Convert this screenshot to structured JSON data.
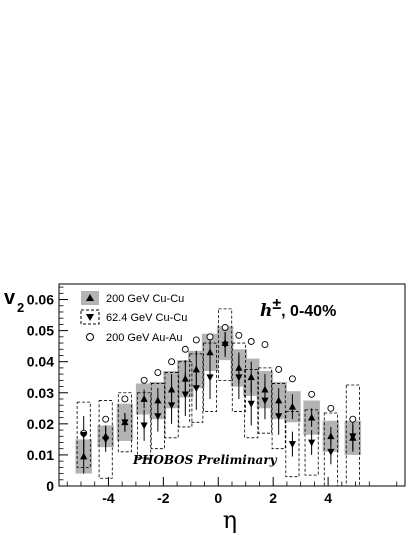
{
  "chart_data": {
    "type": "scatter",
    "xlabel": "η",
    "ylabel": "v",
    "ylabel_sub": "2",
    "xlim": [
      -5.8,
      6.8
    ],
    "ylim": [
      0,
      0.065
    ],
    "xticks": [
      -4,
      -2,
      0,
      2,
      4
    ],
    "xtick_labels": [
      "-4",
      "-2",
      "0",
      "2",
      "4"
    ],
    "yticks": [
      0,
      0.01,
      0.02,
      0.03,
      0.04,
      0.05,
      0.06
    ],
    "ytick_labels": [
      "0",
      "0.01",
      "0.02",
      "0.03",
      "0.04",
      "0.05",
      "0.06"
    ],
    "annotation": {
      "particle": "h",
      "charge": "±",
      "centrality": ", 0-40%"
    },
    "watermark": "PHOBOS Preliminary",
    "legend": {
      "placement": "top-left",
      "entries": [
        {
          "label": "200 GeV Cu-Cu",
          "marker": "triangle-up",
          "band": "gray-filled"
        },
        {
          "label": "62.4 GeV Cu-Cu",
          "marker": "triangle-down",
          "band": "dashed-box"
        },
        {
          "label": "200 GeV Au-Au",
          "marker": "open-circle",
          "band": "none"
        }
      ]
    },
    "series": [
      {
        "name": "200 GeV Cu-Cu",
        "marker": "triangle-up",
        "color": "#000000",
        "band_color": "#b3b3b3",
        "points": [
          {
            "x": -4.9,
            "y": 0.0095,
            "err": 0.0055,
            "sys": 0.0055
          },
          {
            "x": -4.1,
            "y": 0.016,
            "err": 0.0035,
            "sys": 0.0035
          },
          {
            "x": -3.4,
            "y": 0.0205,
            "err": 0.003,
            "sys": 0.006
          },
          {
            "x": -2.7,
            "y": 0.028,
            "err": 0.003,
            "sys": 0.005
          },
          {
            "x": -2.2,
            "y": 0.0275,
            "err": 0.004,
            "sys": 0.006
          },
          {
            "x": -1.7,
            "y": 0.031,
            "err": 0.005,
            "sys": 0.006
          },
          {
            "x": -1.2,
            "y": 0.0345,
            "err": 0.006,
            "sys": 0.006
          },
          {
            "x": -0.8,
            "y": 0.0375,
            "err": 0.006,
            "sys": 0.006
          },
          {
            "x": -0.3,
            "y": 0.043,
            "err": 0.006,
            "sys": 0.006
          },
          {
            "x": 0.25,
            "y": 0.046,
            "err": 0.0035,
            "sys": 0.0055
          },
          {
            "x": 0.75,
            "y": 0.038,
            "err": 0.005,
            "sys": 0.006
          },
          {
            "x": 1.2,
            "y": 0.035,
            "err": 0.005,
            "sys": 0.006
          },
          {
            "x": 1.7,
            "y": 0.031,
            "err": 0.005,
            "sys": 0.006
          },
          {
            "x": 2.2,
            "y": 0.0275,
            "err": 0.004,
            "sys": 0.006
          },
          {
            "x": 2.7,
            "y": 0.0255,
            "err": 0.004,
            "sys": 0.005
          },
          {
            "x": 3.4,
            "y": 0.022,
            "err": 0.003,
            "sys": 0.0055
          },
          {
            "x": 4.1,
            "y": 0.016,
            "err": 0.003,
            "sys": 0.005
          },
          {
            "x": 4.9,
            "y": 0.0155,
            "err": 0.004,
            "sys": 0.0055
          }
        ]
      },
      {
        "name": "62.4 GeV Cu-Cu",
        "marker": "triangle-down",
        "color": "#000000",
        "points": [
          {
            "x": -4.9,
            "y": 0.0165,
            "err": 0.006,
            "sys": 0.0105
          },
          {
            "x": -4.1,
            "y": 0.015,
            "err": 0.004,
            "sys": 0.0125
          },
          {
            "x": -3.4,
            "y": 0.0205,
            "err": 0.003,
            "sys": 0.0095
          },
          {
            "x": -2.7,
            "y": 0.0195,
            "err": 0.005,
            "sys": 0.0105
          },
          {
            "x": -2.2,
            "y": 0.0225,
            "err": 0.005,
            "sys": 0.0105
          },
          {
            "x": -1.7,
            "y": 0.026,
            "err": 0.006,
            "sys": 0.0105
          },
          {
            "x": -1.2,
            "y": 0.0295,
            "err": 0.007,
            "sys": 0.0105
          },
          {
            "x": -0.8,
            "y": 0.0315,
            "err": 0.007,
            "sys": 0.011
          },
          {
            "x": -0.3,
            "y": 0.035,
            "err": 0.007,
            "sys": 0.011
          },
          {
            "x": 0.25,
            "y": 0.0455,
            "err": 0.004,
            "sys": 0.0115
          },
          {
            "x": 0.75,
            "y": 0.035,
            "err": 0.007,
            "sys": 0.011
          },
          {
            "x": 1.2,
            "y": 0.0265,
            "err": 0.007,
            "sys": 0.011
          },
          {
            "x": 1.7,
            "y": 0.0275,
            "err": 0.006,
            "sys": 0.0105
          },
          {
            "x": 2.2,
            "y": 0.0225,
            "err": 0.006,
            "sys": 0.0105
          },
          {
            "x": 2.7,
            "y": 0.0135,
            "err": 0.004,
            "sys": 0.0105
          },
          {
            "x": 3.4,
            "y": 0.014,
            "err": 0.004,
            "sys": 0.0105
          },
          {
            "x": 4.1,
            "y": 0.011,
            "err": 0.004,
            "sys": 0.0125
          },
          {
            "x": 4.9,
            "y": 0.016,
            "err": 0.005,
            "sys": 0.0165
          }
        ]
      },
      {
        "name": "200 GeV Au-Au",
        "marker": "open-circle",
        "color": "#000000",
        "points": [
          {
            "x": -4.9,
            "y": 0.017
          },
          {
            "x": -4.1,
            "y": 0.0215
          },
          {
            "x": -3.4,
            "y": 0.028
          },
          {
            "x": -2.7,
            "y": 0.034
          },
          {
            "x": -2.2,
            "y": 0.0365
          },
          {
            "x": -1.7,
            "y": 0.04
          },
          {
            "x": -1.2,
            "y": 0.044
          },
          {
            "x": -0.8,
            "y": 0.047
          },
          {
            "x": -0.3,
            "y": 0.048
          },
          {
            "x": 0.25,
            "y": 0.051
          },
          {
            "x": 0.75,
            "y": 0.0485
          },
          {
            "x": 1.2,
            "y": 0.0465
          },
          {
            "x": 1.7,
            "y": 0.0455
          },
          {
            "x": 2.2,
            "y": 0.0375
          },
          {
            "x": 2.7,
            "y": 0.0345
          },
          {
            "x": 3.4,
            "y": 0.0295
          },
          {
            "x": 4.1,
            "y": 0.025
          },
          {
            "x": 4.9,
            "y": 0.0215
          }
        ]
      }
    ]
  }
}
